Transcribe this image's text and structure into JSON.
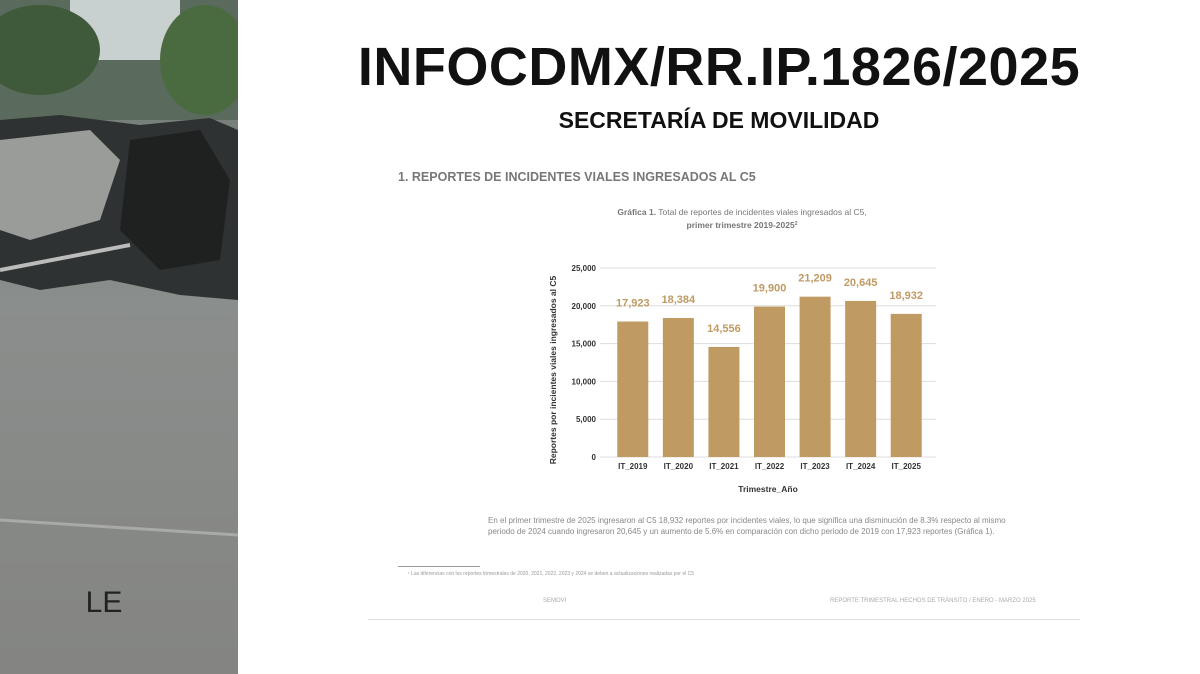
{
  "header": {
    "title": "INFOCDMX/RR.IP.1826/2025",
    "subtitle": "SECRETARÍA DE MOVILIDAD",
    "logo": "LE"
  },
  "section_title": "1. REPORTES DE INCIDENTES VIALES INGRESADOS AL C5",
  "chart_data": {
    "type": "bar",
    "title_label": "Gráfica 1.",
    "title": "Total de reportes de incidentes viales ingresados al C5,",
    "subtitle": "primer trimestre 2019-2025",
    "subtitle_note": "2",
    "y_label": "Reportes por incientes viales ingresados al C5",
    "x_label": "Trimestre_Año",
    "categories": [
      "IT_2019",
      "IT_2020",
      "IT_2021",
      "IT_2022",
      "IT_2023",
      "IT_2024",
      "IT_2025"
    ],
    "values": [
      17923,
      18384,
      14556,
      19900,
      21209,
      20645,
      18932
    ],
    "value_labels": [
      "17,923",
      "18,384",
      "14,556",
      "19,900",
      "21,209",
      "20,645",
      "18,932"
    ],
    "color": "#c09a63",
    "ylim": [
      0,
      25000
    ],
    "yticks": [
      0,
      {
        "value": 5000,
        "label": "5,000"
      },
      {
        "value": 10000,
        "label": "10,000"
      },
      {
        "value": 15000,
        "label": "15,000"
      },
      {
        "value": 20000,
        "label": "20,000"
      },
      {
        "value": 25000,
        "label": "25,000"
      }
    ],
    "grid": true
  },
  "paragraph": "En el primer trimestre de 2025 ingresaron al C5 18,932 reportes por incidentes viales, lo que significa una disminución de 8.3% respecto al mismo periodo de 2024 cuando ingresaron 20,645 y un aumento de 5.6% en comparación con dicho periodo de 2019 con 17,923 reportes (Gráfica 1).",
  "footnote": "¹ Las diferencias con los reportes trimestrales de 2020, 2021, 2022, 2023 y 2024 se deben a actualizaciones realizadas por el C5",
  "footer": {
    "left": "SEMOVI",
    "right": "REPORTE TRIMESTRAL HECHOS DE TRÁNSITO / ENERO - MARZO 2025"
  }
}
